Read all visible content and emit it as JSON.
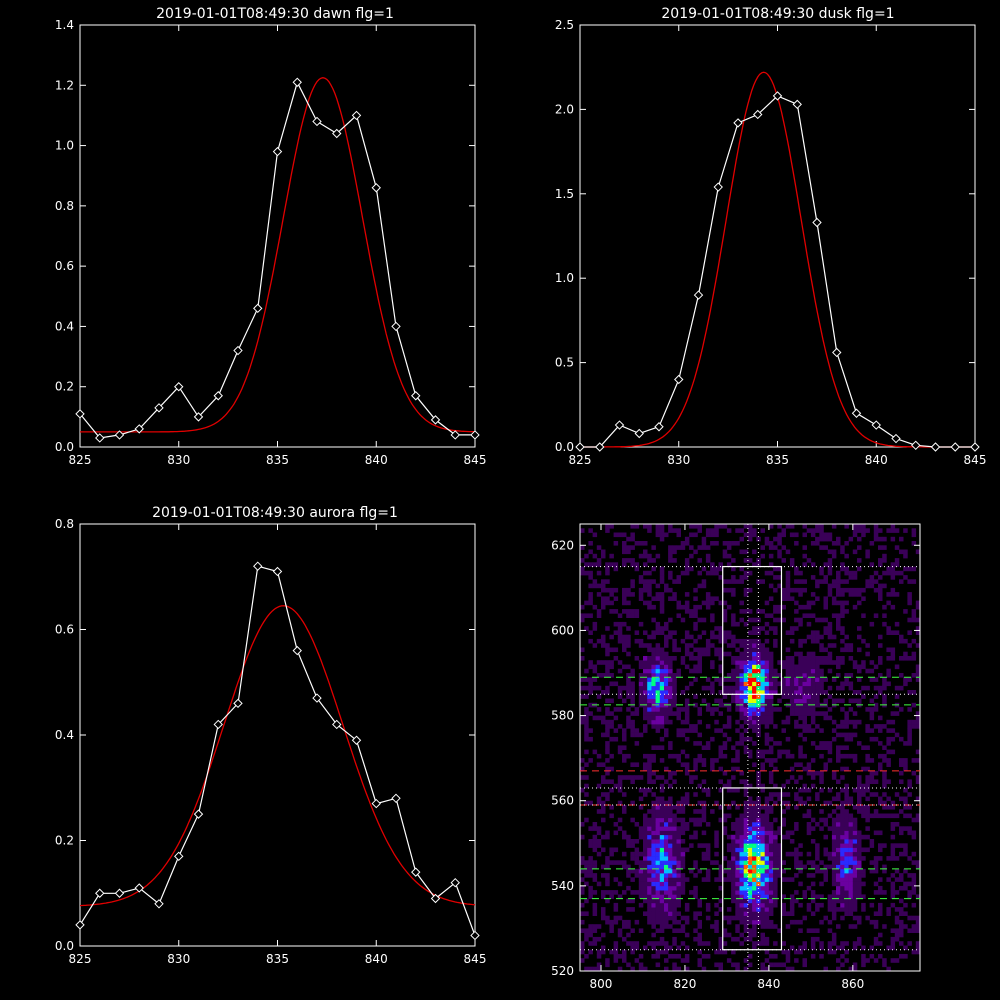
{
  "chart_data": [
    {
      "type": "line",
      "title": "2019-01-01T08:49:30 dawn flg=1",
      "xlim": [
        825,
        845
      ],
      "ylim": [
        0,
        1.4
      ],
      "xticks": [
        "825",
        "830",
        "835",
        "840",
        "845"
      ],
      "yticks": [
        "0.0",
        "0.2",
        "0.4",
        "0.6",
        "0.8",
        "1.0",
        "1.2",
        "1.4"
      ],
      "series": [
        {
          "color": "#ffffff",
          "marker": "diamond",
          "x": [
            825,
            826,
            827,
            828,
            829,
            830,
            831,
            832,
            833,
            834,
            835,
            836,
            837,
            838,
            839,
            840,
            841,
            842,
            843,
            844,
            845
          ],
          "y": [
            0.11,
            0.03,
            0.04,
            0.06,
            0.13,
            0.2,
            0.1,
            0.17,
            0.32,
            0.46,
            0.98,
            1.21,
            1.08,
            1.04,
            1.1,
            0.86,
            0.4,
            0.17,
            0.09,
            0.04,
            0.04
          ]
        },
        {
          "color": "#e00000",
          "marker": "none",
          "model": {
            "amp": 1.175,
            "center": 837.3,
            "sigma": 2.0,
            "offset": 0.05
          }
        }
      ]
    },
    {
      "type": "line",
      "title": "2019-01-01T08:49:30 dusk flg=1",
      "xlim": [
        825,
        845
      ],
      "ylim": [
        0,
        2.5
      ],
      "xticks": [
        "825",
        "830",
        "835",
        "840",
        "845"
      ],
      "yticks": [
        "0.0",
        "0.5",
        "1.0",
        "1.5",
        "2.0",
        "2.5"
      ],
      "series": [
        {
          "color": "#ffffff",
          "marker": "diamond",
          "x": [
            825,
            826,
            827,
            828,
            829,
            830,
            831,
            832,
            833,
            834,
            835,
            836,
            837,
            838,
            839,
            840,
            841,
            842,
            843,
            844,
            845
          ],
          "y": [
            0.0,
            0.0,
            0.13,
            0.08,
            0.12,
            0.4,
            0.9,
            1.54,
            1.92,
            1.97,
            2.08,
            2.03,
            1.33,
            0.56,
            0.2,
            0.13,
            0.05,
            0.01,
            0.0,
            0.0,
            0.0
          ]
        },
        {
          "color": "#e00000",
          "marker": "none",
          "model": {
            "amp": 2.22,
            "center": 834.3,
            "sigma": 1.9,
            "offset": 0.0
          }
        }
      ]
    },
    {
      "type": "line",
      "title": "2019-01-01T08:49:30 aurora flg=1",
      "xlim": [
        825,
        845
      ],
      "ylim": [
        0,
        0.8
      ],
      "xticks": [
        "825",
        "830",
        "835",
        "840",
        "845"
      ],
      "yticks": [
        "0.0",
        "0.2",
        "0.4",
        "0.6",
        "0.8"
      ],
      "series": [
        {
          "color": "#ffffff",
          "marker": "diamond",
          "x": [
            825,
            826,
            827,
            828,
            829,
            830,
            831,
            832,
            833,
            834,
            835,
            836,
            837,
            838,
            839,
            840,
            841,
            842,
            843,
            844,
            845
          ],
          "y": [
            0.04,
            0.1,
            0.1,
            0.11,
            0.08,
            0.17,
            0.25,
            0.42,
            0.46,
            0.72,
            0.71,
            0.56,
            0.47,
            0.42,
            0.39,
            0.27,
            0.28,
            0.14,
            0.09,
            0.12,
            0.02
          ]
        },
        {
          "color": "#e00000",
          "marker": "none",
          "model": {
            "amp": 0.57,
            "center": 835.3,
            "sigma": 3.0,
            "offset": 0.075
          }
        }
      ]
    },
    {
      "type": "heatmap",
      "title": "",
      "xlim": [
        795,
        876
      ],
      "ylim": [
        520,
        625
      ],
      "xticks": [
        800,
        820,
        840,
        860
      ],
      "yticks": [
        520,
        540,
        560,
        580,
        600,
        620
      ],
      "colormap": [
        "#000000",
        "#3a0058",
        "#6a00a0",
        "#2a2aff",
        "#00c0ff",
        "#00ff80",
        "#e0ff00",
        "#ff6000",
        "#ff0000"
      ],
      "blobs": [
        {
          "x": 813,
          "y": 586,
          "sx": 2.0,
          "sy": 4,
          "amp": 0.55
        },
        {
          "x": 836,
          "y": 587,
          "sx": 2.0,
          "sy": 4,
          "amp": 1.0
        },
        {
          "x": 814,
          "y": 545,
          "sx": 2.5,
          "sy": 7,
          "amp": 0.4
        },
        {
          "x": 836,
          "y": 544,
          "sx": 2.5,
          "sy": 6,
          "amp": 0.75
        },
        {
          "x": 858,
          "y": 545,
          "sx": 2.0,
          "sy": 6,
          "amp": 0.3
        },
        {
          "x": 848,
          "y": 586,
          "sx": 3.0,
          "sy": 5,
          "amp": 0.15
        }
      ],
      "hlines": [
        {
          "y": 615,
          "color": "#ffffff",
          "style": "dotted"
        },
        {
          "y": 589,
          "color": "#40ff40",
          "style": "dashed"
        },
        {
          "y": 585,
          "color": "#ffffff",
          "style": "dotted"
        },
        {
          "y": 582.5,
          "color": "#40ff40",
          "style": "dashed"
        },
        {
          "y": 567,
          "color": "#ff3030",
          "style": "dashed"
        },
        {
          "y": 563,
          "color": "#ffffff",
          "style": "dotted"
        },
        {
          "y": 559,
          "color": "#ff3030",
          "style": "dashed"
        },
        {
          "y": 559,
          "color": "#ffffff",
          "style": "dotted"
        },
        {
          "y": 544,
          "color": "#40ff40",
          "style": "dashed"
        },
        {
          "y": 537,
          "color": "#40ff40",
          "style": "dashed"
        },
        {
          "y": 525,
          "color": "#ffffff",
          "style": "dotted"
        }
      ],
      "vlines": [
        {
          "x": 835,
          "color": "#ffffff",
          "style": "dotted"
        },
        {
          "x": 837.5,
          "color": "#ffffff",
          "style": "dotted"
        }
      ],
      "boxes": [
        {
          "x0": 829,
          "x1": 843,
          "y0": 585,
          "y1": 615,
          "color": "#ffffff"
        },
        {
          "x0": 829,
          "x1": 843,
          "y0": 525,
          "y1": 563,
          "color": "#ffffff"
        }
      ]
    }
  ]
}
